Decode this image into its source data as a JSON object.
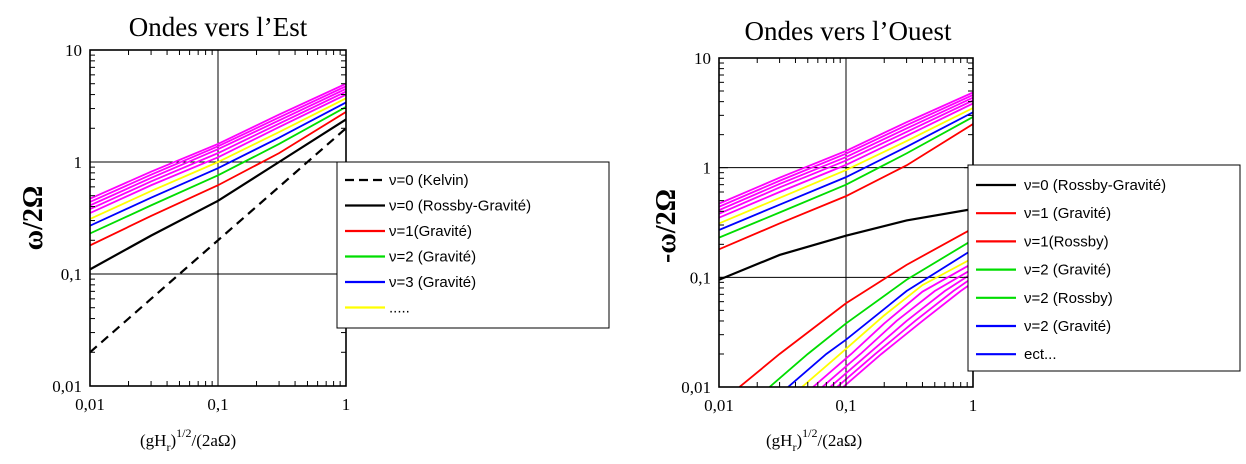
{
  "chart_data": [
    {
      "type": "line",
      "title": "Ondes vers l’Est",
      "ylabel": "ω/2Ω",
      "xlabel_main": "(gH",
      "xlabel_sub": "r",
      "xlabel_close": ")",
      "xlabel_sup": "1/2",
      "xlabel_tail": "/(2aΩ)",
      "x_scale": "log",
      "y_scale": "log",
      "xlim": [
        0.01,
        1
      ],
      "ylim": [
        0.01,
        10
      ],
      "x_ticks": [
        "0,01",
        "0,1",
        "1"
      ],
      "y_ticks": [
        "0,01",
        "0,1",
        "1",
        "10"
      ],
      "grid": "major lines at 0,1 and 1",
      "legend_position": "right",
      "legend": [
        {
          "label": "ν=0 (Kelvin)",
          "color": "#000000",
          "dash": true
        },
        {
          "label": "ν=0 (Rossby-Gravité)",
          "color": "#000000",
          "dash": false
        },
        {
          "label": "ν=1(Gravité)",
          "color": "#ff0000",
          "dash": false
        },
        {
          "label": "ν=2 (Gravité)",
          "color": "#00dd00",
          "dash": false
        },
        {
          "label": "ν=3 (Gravité)",
          "color": "#0000ff",
          "dash": false
        },
        {
          "label": ".....",
          "color": "#ffff00",
          "dash": false
        }
      ],
      "series": [
        {
          "color": "#000000",
          "dash": true,
          "x": [
            0.01,
            0.03,
            0.1,
            0.3,
            1
          ],
          "y": [
            0.02,
            0.06,
            0.2,
            0.6,
            2.0
          ]
        },
        {
          "color": "#000000",
          "dash": false,
          "x": [
            0.01,
            0.03,
            0.1,
            0.3,
            1
          ],
          "y": [
            0.11,
            0.22,
            0.45,
            1.0,
            2.4
          ]
        },
        {
          "color": "#ff0000",
          "dash": false,
          "x": [
            0.01,
            0.03,
            0.1,
            0.3,
            1
          ],
          "y": [
            0.18,
            0.33,
            0.62,
            1.2,
            2.8
          ]
        },
        {
          "color": "#00dd00",
          "dash": false,
          "x": [
            0.01,
            0.03,
            0.1,
            0.3,
            1
          ],
          "y": [
            0.23,
            0.41,
            0.76,
            1.45,
            3.1
          ]
        },
        {
          "color": "#0000ff",
          "dash": false,
          "x": [
            0.01,
            0.03,
            0.1,
            0.3,
            1
          ],
          "y": [
            0.27,
            0.48,
            0.88,
            1.65,
            3.4
          ]
        },
        {
          "color": "#ffff00",
          "dash": false,
          "x": [
            0.01,
            0.03,
            0.1,
            0.3,
            1
          ],
          "y": [
            0.31,
            0.55,
            1.0,
            1.85,
            3.7
          ]
        },
        {
          "color": "#ff00ff",
          "dash": false,
          "x": [
            0.01,
            0.03,
            0.1,
            0.3,
            1
          ],
          "y": [
            0.35,
            0.62,
            1.1,
            2.05,
            4.0
          ]
        },
        {
          "color": "#ff00ff",
          "dash": false,
          "x": [
            0.01,
            0.03,
            0.1,
            0.3,
            1
          ],
          "y": [
            0.38,
            0.67,
            1.2,
            2.2,
            4.25
          ]
        },
        {
          "color": "#ff00ff",
          "dash": false,
          "x": [
            0.01,
            0.03,
            0.1,
            0.3,
            1
          ],
          "y": [
            0.41,
            0.72,
            1.3,
            2.35,
            4.5
          ]
        },
        {
          "color": "#ff00ff",
          "dash": false,
          "x": [
            0.01,
            0.03,
            0.1,
            0.3,
            1
          ],
          "y": [
            0.44,
            0.77,
            1.38,
            2.5,
            4.75
          ]
        },
        {
          "color": "#ff00ff",
          "dash": false,
          "x": [
            0.01,
            0.03,
            0.1,
            0.3,
            1
          ],
          "y": [
            0.47,
            0.82,
            1.45,
            2.65,
            5.0
          ]
        }
      ]
    },
    {
      "type": "line",
      "title": "Ondes vers l’Ouest",
      "ylabel": "-ω/2Ω",
      "xlabel_main": "(gH",
      "xlabel_sub": "r",
      "xlabel_close": ")",
      "xlabel_sup": "1/2",
      "xlabel_tail": "/(2aΩ)",
      "x_scale": "log",
      "y_scale": "log",
      "xlim": [
        0.01,
        1
      ],
      "ylim": [
        0.01,
        10
      ],
      "x_ticks": [
        "0,01",
        "0,1",
        "1"
      ],
      "y_ticks": [
        "0,01",
        "0,1",
        "1",
        "10"
      ],
      "grid": "major lines at 0,1 and 1",
      "legend_position": "right",
      "legend": [
        {
          "label": "ν=0 (Rossby-Gravité)",
          "color": "#000000",
          "dash": false
        },
        {
          "label": "ν=1 (Gravité)",
          "color": "#ff0000",
          "dash": false
        },
        {
          "label": "ν=1(Rossby)",
          "color": "#ff0000",
          "dash": false
        },
        {
          "label": "ν=2 (Gravité)",
          "color": "#00dd00",
          "dash": false
        },
        {
          "label": "ν=2 (Rossby)",
          "color": "#00dd00",
          "dash": false
        },
        {
          "label": " ν=2 (Gravité)",
          "color": "#0000ff",
          "dash": false
        },
        {
          "label": "ect...",
          "color": "#0000ff",
          "dash": false
        }
      ],
      "series": [
        {
          "color": "#000000",
          "dash": false,
          "x": [
            0.01,
            0.03,
            0.1,
            0.3,
            1
          ],
          "y": [
            0.095,
            0.16,
            0.24,
            0.33,
            0.42
          ]
        },
        {
          "color": "#ff0000",
          "dash": false,
          "x": [
            0.01,
            0.03,
            0.1,
            0.3,
            1
          ],
          "y": [
            0.18,
            0.31,
            0.55,
            1.05,
            2.5
          ]
        },
        {
          "color": "#00dd00",
          "dash": false,
          "x": [
            0.01,
            0.03,
            0.1,
            0.3,
            1
          ],
          "y": [
            0.23,
            0.39,
            0.7,
            1.35,
            2.9
          ]
        },
        {
          "color": "#0000ff",
          "dash": false,
          "x": [
            0.01,
            0.03,
            0.1,
            0.3,
            1
          ],
          "y": [
            0.27,
            0.46,
            0.82,
            1.55,
            3.2
          ]
        },
        {
          "color": "#ffff00",
          "dash": false,
          "x": [
            0.01,
            0.03,
            0.1,
            0.3,
            1
          ],
          "y": [
            0.31,
            0.53,
            0.95,
            1.75,
            3.5
          ]
        },
        {
          "color": "#ff00ff",
          "dash": false,
          "x": [
            0.01,
            0.03,
            0.1,
            0.3,
            1
          ],
          "y": [
            0.35,
            0.6,
            1.06,
            1.95,
            3.85
          ]
        },
        {
          "color": "#ff00ff",
          "dash": false,
          "x": [
            0.01,
            0.03,
            0.1,
            0.3,
            1
          ],
          "y": [
            0.38,
            0.66,
            1.16,
            2.12,
            4.1
          ]
        },
        {
          "color": "#ff00ff",
          "dash": false,
          "x": [
            0.01,
            0.03,
            0.1,
            0.3,
            1
          ],
          "y": [
            0.41,
            0.71,
            1.25,
            2.28,
            4.35
          ]
        },
        {
          "color": "#ff00ff",
          "dash": false,
          "x": [
            0.01,
            0.03,
            0.1,
            0.3,
            1
          ],
          "y": [
            0.44,
            0.76,
            1.34,
            2.44,
            4.6
          ]
        },
        {
          "color": "#ff00ff",
          "dash": false,
          "x": [
            0.01,
            0.03,
            0.1,
            0.3,
            1
          ],
          "y": [
            0.47,
            0.81,
            1.42,
            2.6,
            4.85
          ]
        },
        {
          "color": "#ff0000",
          "dash": false,
          "x": [
            0.0145,
            0.03,
            0.1,
            0.3,
            1
          ],
          "y": [
            0.01,
            0.02,
            0.058,
            0.13,
            0.28
          ]
        },
        {
          "color": "#00dd00",
          "dash": false,
          "x": [
            0.025,
            0.05,
            0.1,
            0.3,
            1
          ],
          "y": [
            0.01,
            0.02,
            0.038,
            0.095,
            0.22
          ]
        },
        {
          "color": "#0000ff",
          "dash": false,
          "x": [
            0.035,
            0.07,
            0.1,
            0.3,
            1
          ],
          "y": [
            0.01,
            0.02,
            0.027,
            0.075,
            0.18
          ]
        },
        {
          "color": "#ffff00",
          "dash": false,
          "x": [
            0.045,
            0.09,
            0.2,
            0.4,
            1
          ],
          "y": [
            0.01,
            0.02,
            0.045,
            0.085,
            0.15
          ]
        },
        {
          "color": "#ff00ff",
          "dash": false,
          "x": [
            0.055,
            0.11,
            0.2,
            0.4,
            1
          ],
          "y": [
            0.01,
            0.02,
            0.038,
            0.074,
            0.135
          ]
        },
        {
          "color": "#ff00ff",
          "dash": false,
          "x": [
            0.065,
            0.13,
            0.25,
            0.5,
            1
          ],
          "y": [
            0.01,
            0.02,
            0.04,
            0.075,
            0.12
          ]
        },
        {
          "color": "#ff00ff",
          "dash": false,
          "x": [
            0.075,
            0.15,
            0.3,
            0.6,
            1
          ],
          "y": [
            0.01,
            0.02,
            0.04,
            0.075,
            0.11
          ]
        },
        {
          "color": "#ff00ff",
          "dash": false,
          "x": [
            0.085,
            0.17,
            0.35,
            0.7,
            1
          ],
          "y": [
            0.01,
            0.02,
            0.04,
            0.075,
            0.1
          ]
        },
        {
          "color": "#ff00ff",
          "dash": false,
          "x": [
            0.095,
            0.19,
            0.4,
            0.8,
            1
          ],
          "y": [
            0.01,
            0.02,
            0.04,
            0.075,
            0.09
          ]
        }
      ]
    }
  ]
}
